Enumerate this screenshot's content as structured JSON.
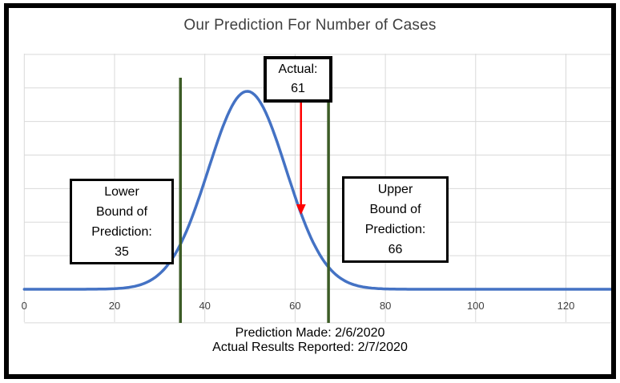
{
  "chart_data": {
    "type": "line",
    "title": "Our Prediction For Number of Cases",
    "subtitle": "",
    "xlabel": "",
    "ylabel": "",
    "x_axis": {
      "ticks": [
        0,
        20,
        40,
        60,
        80,
        100,
        120
      ],
      "range": [
        0,
        130
      ]
    },
    "y_axis": {
      "labels_visible": false,
      "range_gridline_units": [
        -1,
        7
      ],
      "horizontal_gridlines": 9
    },
    "grid": true,
    "legend": false,
    "curve": {
      "shape": "normal-density",
      "mean": 49.4,
      "sigma": 8.6,
      "peak_height_units": 5.9,
      "color": "#4472C4"
    },
    "lower_bound": {
      "value": 35,
      "plotted_x": 34.6,
      "label_lines": [
        "Lower",
        "Bound of",
        "Prediction:",
        "35"
      ],
      "line_color": "#3C5C26"
    },
    "upper_bound": {
      "value": 66,
      "plotted_x": 67.4,
      "label_lines": [
        "Upper",
        "Bound of",
        "Prediction:",
        "66"
      ],
      "line_color": "#3C5C26"
    },
    "actual": {
      "value": 61,
      "plotted_x": 61.3,
      "label_lines": [
        "Actual:",
        "61"
      ],
      "arrow_color": "#FF0000"
    },
    "footer_lines": [
      "Prediction Made: 2/6/2020",
      "Actual Results Reported: 2/7/2020"
    ],
    "colors": {
      "gridline": "#D9D9D9",
      "title_text": "#3f3f3f",
      "axis_label_text": "#404040",
      "annotation_border": "#000000",
      "frame_border": "#000000",
      "background": "#ffffff"
    }
  }
}
